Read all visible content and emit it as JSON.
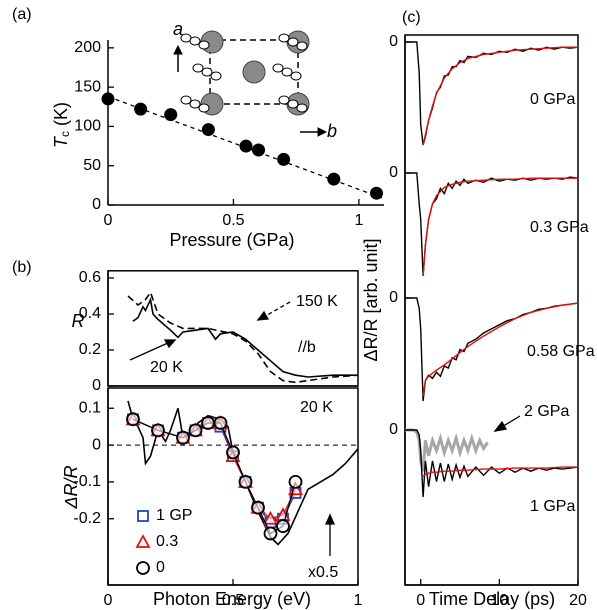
{
  "chart_data": [
    {
      "type": "scatter",
      "panel_label": "(a)",
      "xlabel": "Pressure (GPa)",
      "ylabel": {
        "symbol": "T",
        "sub": "c",
        "unit": " (K)"
      },
      "x": [
        0,
        0.13,
        0.25,
        0.4,
        0.55,
        0.6,
        0.7,
        0.9,
        1.07
      ],
      "values": [
        135,
        122,
        115,
        96,
        75,
        70,
        58,
        33,
        15
      ],
      "color": "#000000",
      "fit": {
        "x": [
          0,
          1.1
        ],
        "values": [
          138,
          8
        ],
        "color": "#000000"
      },
      "inset_labels": [
        "a",
        "b"
      ],
      "xlim": [
        0,
        1.1
      ],
      "ylim": [
        0,
        210
      ],
      "xticks": [
        0,
        0.5,
        1
      ],
      "yticks": [
        0,
        50,
        100,
        150,
        200
      ]
    },
    {
      "type": "line",
      "panel_label": "(b)",
      "ylabel": "R",
      "annotations": [
        "//b"
      ],
      "series": [
        {
          "name": "150 K",
          "color": "#000000",
          "dashed": true,
          "x": [
            0.08,
            0.12,
            0.15,
            0.17,
            0.2,
            0.25,
            0.3,
            0.4,
            0.5,
            0.55,
            0.6,
            0.65,
            0.7,
            0.75,
            0.8,
            0.9,
            1
          ],
          "values": [
            0.5,
            0.45,
            0.48,
            0.52,
            0.4,
            0.35,
            0.32,
            0.32,
            0.29,
            0.25,
            0.18,
            0.08,
            0.03,
            0.02,
            0.03,
            0.05,
            0.06
          ]
        },
        {
          "name": "20 K",
          "color": "#000000",
          "dashed": false,
          "x": [
            0.1,
            0.12,
            0.14,
            0.15,
            0.17,
            0.18,
            0.2,
            0.25,
            0.28,
            0.3,
            0.35,
            0.4,
            0.43,
            0.45,
            0.5,
            0.55,
            0.6,
            0.65,
            0.7,
            0.75,
            0.8,
            0.9,
            1
          ],
          "values": [
            0.36,
            0.38,
            0.44,
            0.42,
            0.48,
            0.4,
            0.37,
            0.31,
            0.27,
            0.3,
            0.31,
            0.32,
            0.26,
            0.29,
            0.3,
            0.26,
            0.2,
            0.14,
            0.08,
            0.06,
            0.05,
            0.06,
            0.06
          ]
        }
      ],
      "xlim": [
        0,
        1
      ],
      "ylim": [
        0,
        0.64
      ],
      "yticks": [
        0,
        0.2,
        0.4,
        0.6
      ]
    },
    {
      "type": "line",
      "xlabel": "Photon Energy (eV)",
      "ylabel": "ΔR/R",
      "annotations": [
        "20 K",
        "x0.5"
      ],
      "zero_line": true,
      "series": [
        {
          "color": "#000000",
          "x": [
            0.08,
            0.1,
            0.12,
            0.14,
            0.15,
            0.17,
            0.2,
            0.23,
            0.25,
            0.28,
            0.3,
            0.33,
            0.36,
            0.4,
            0.45,
            0.48,
            0.5,
            0.55,
            0.6,
            0.65,
            0.68,
            0.72,
            0.76,
            0.8,
            0.85,
            0.9,
            0.95,
            1
          ],
          "values": [
            0.12,
            0.07,
            0.05,
            0.02,
            -0.05,
            -0.03,
            0.04,
            0.01,
            0.04,
            0.1,
            0.02,
            0.03,
            0.06,
            0.08,
            0.07,
            0.05,
            -0.02,
            -0.1,
            -0.18,
            -0.25,
            -0.27,
            -0.24,
            -0.18,
            -0.12,
            -0.1,
            -0.08,
            -0.05,
            -0.01
          ]
        },
        {
          "name": "1 GP",
          "color": "#1f3fd8",
          "marker": "square",
          "x": [
            0.1,
            0.2,
            0.3,
            0.35,
            0.4,
            0.45,
            0.5,
            0.55,
            0.6,
            0.65,
            0.7,
            0.75
          ],
          "values": [
            0.07,
            0.04,
            0.02,
            0.04,
            0.06,
            0.05,
            -0.03,
            -0.1,
            -0.17,
            -0.21,
            -0.2,
            -0.13
          ]
        },
        {
          "name": "0.3",
          "color": "#e01010",
          "marker": "triangle",
          "x": [
            0.1,
            0.2,
            0.3,
            0.35,
            0.4,
            0.45,
            0.5,
            0.55,
            0.6,
            0.65,
            0.7,
            0.75
          ],
          "values": [
            0.07,
            0.04,
            0.02,
            0.04,
            0.06,
            0.06,
            -0.03,
            -0.1,
            -0.17,
            -0.2,
            -0.19,
            -0.12
          ]
        },
        {
          "name": "0",
          "color": "#000000",
          "marker": "circle",
          "x": [
            0.1,
            0.2,
            0.3,
            0.35,
            0.4,
            0.45,
            0.5,
            0.55,
            0.6,
            0.65,
            0.7,
            0.75
          ],
          "values": [
            0.07,
            0.04,
            0.02,
            0.04,
            0.06,
            0.06,
            -0.02,
            -0.1,
            -0.17,
            -0.24,
            -0.22,
            -0.1
          ]
        }
      ],
      "xlim": [
        0,
        1
      ],
      "ylim": [
        -0.38,
        0.155
      ],
      "xticks": [
        0,
        0.5,
        1
      ],
      "yticks": [
        0.1,
        0,
        -0.1,
        -0.2
      ]
    },
    {
      "type": "line",
      "panel_label": "(c)",
      "xlabel": "Time Delay (ps)",
      "ylabel": "ΔR/R [arb. unit]",
      "xlim": [
        -2,
        20
      ],
      "xticks": [
        0,
        10,
        20
      ],
      "traces": [
        {
          "label": "0 GPa",
          "ylim": [
            -1.2,
            0.1
          ],
          "yticks": [
            0
          ],
          "series": [
            {
              "color": "#000000",
              "x": [
                -2,
                -1.5,
                -1,
                -0.5,
                -0.2,
                0,
                0.3,
                0.6,
                1,
                1.5,
                2,
                2.5,
                3,
                3.5,
                4,
                4.5,
                5,
                5.5,
                6,
                7,
                8,
                9,
                10,
                11,
                12,
                13,
                14,
                15,
                16,
                17,
                18,
                19,
                20
              ],
              "values": [
                0,
                0,
                0,
                0,
                -0.3,
                -0.8,
                -1,
                -0.92,
                -0.76,
                -0.64,
                -0.49,
                -0.44,
                -0.33,
                -0.32,
                -0.24,
                -0.24,
                -0.18,
                -0.2,
                -0.14,
                -0.15,
                -0.11,
                -0.12,
                -0.09,
                -0.1,
                -0.07,
                -0.09,
                -0.06,
                -0.08,
                -0.05,
                -0.07,
                -0.05,
                -0.06,
                -0.05
              ]
            },
            {
              "color": "#e01010",
              "x": [
                0.3,
                0.6,
                1,
                1.5,
                2,
                3,
                4,
                5,
                6,
                8,
                10,
                12,
                14,
                16,
                18,
                20
              ],
              "values": [
                -1,
                -0.9,
                -0.76,
                -0.62,
                -0.5,
                -0.35,
                -0.26,
                -0.2,
                -0.16,
                -0.12,
                -0.1,
                -0.08,
                -0.07,
                -0.06,
                -0.05,
                -0.05
              ]
            }
          ]
        },
        {
          "label": "0.3 GPa",
          "ylim": [
            -1.2,
            0.1
          ],
          "yticks": [
            0
          ],
          "series": [
            {
              "color": "#000000",
              "x": [
                -2,
                -1.5,
                -1,
                -0.5,
                -0.2,
                0,
                0.3,
                0.6,
                1,
                1.5,
                2,
                2.5,
                3,
                3.5,
                4,
                4.5,
                5,
                5.5,
                6,
                7,
                8,
                9,
                10,
                11,
                12,
                13,
                14,
                15,
                16,
                17,
                18,
                19,
                20
              ],
              "values": [
                0,
                0,
                0,
                0,
                -0.3,
                -0.45,
                -1,
                -0.7,
                -0.45,
                -0.3,
                -0.25,
                -0.15,
                -0.2,
                -0.1,
                -0.15,
                -0.08,
                -0.12,
                -0.06,
                -0.1,
                -0.07,
                -0.09,
                -0.05,
                -0.08,
                -0.06,
                -0.07,
                -0.05,
                -0.07,
                -0.05,
                -0.06,
                -0.05,
                -0.06,
                -0.04,
                -0.05
              ]
            },
            {
              "color": "#e01010",
              "x": [
                0.3,
                0.6,
                1,
                1.5,
                2,
                3,
                4,
                5,
                6,
                8,
                10,
                12,
                14,
                16,
                18,
                20
              ],
              "values": [
                -1,
                -0.7,
                -0.45,
                -0.3,
                -0.22,
                -0.14,
                -0.11,
                -0.09,
                -0.08,
                -0.07,
                -0.06,
                -0.06,
                -0.05,
                -0.05,
                -0.05,
                -0.05
              ]
            }
          ]
        },
        {
          "label": "0.58 GPa",
          "ylim": [
            -1.2,
            0.1
          ],
          "yticks": [
            0
          ],
          "series": [
            {
              "color": "#000000",
              "x": [
                -2,
                -1.5,
                -1,
                -0.5,
                -0.2,
                0,
                0.3,
                0.6,
                1,
                1.5,
                2,
                2.5,
                3,
                3.5,
                4,
                4.5,
                5,
                5.5,
                6,
                7,
                8,
                9,
                10,
                11,
                12,
                13,
                14,
                15,
                16,
                17,
                18,
                19,
                20
              ],
              "values": [
                0,
                0,
                0,
                0,
                -0.1,
                -0.3,
                -1,
                -0.8,
                -0.75,
                -0.78,
                -0.72,
                -0.76,
                -0.66,
                -0.68,
                -0.58,
                -0.6,
                -0.5,
                -0.52,
                -0.44,
                -0.4,
                -0.34,
                -0.3,
                -0.26,
                -0.22,
                -0.2,
                -0.16,
                -0.14,
                -0.11,
                -0.1,
                -0.08,
                -0.07,
                -0.06,
                -0.05
              ]
            },
            {
              "color": "#e01010",
              "x": [
                0.3,
                0.6,
                1,
                1.5,
                2,
                3,
                4,
                5,
                6,
                8,
                10,
                12,
                14,
                16,
                18,
                20
              ],
              "values": [
                -0.95,
                -0.8,
                -0.76,
                -0.73,
                -0.7,
                -0.65,
                -0.59,
                -0.53,
                -0.47,
                -0.37,
                -0.28,
                -0.2,
                -0.14,
                -0.1,
                -0.07,
                -0.05
              ]
            }
          ]
        },
        {
          "label": "1 GPa",
          "ylim": [
            -1.2,
            0.1
          ],
          "yticks": [
            0
          ],
          "series": [
            {
              "name": "2 GPa",
              "color": "#a6a6a6",
              "x": [
                -2,
                -1.5,
                -1,
                -0.5,
                -0.2,
                0,
                0.3,
                0.6,
                1,
                1.5,
                2,
                2.5,
                3,
                3.5,
                4,
                4.5,
                5,
                5.5,
                6,
                6.5,
                7,
                7.5,
                8,
                8.5
              ],
              "values": [
                0,
                0,
                0,
                -0.02,
                -0.1,
                -0.3,
                -0.4,
                -0.1,
                -0.25,
                -0.1,
                -0.2,
                -0.08,
                -0.22,
                -0.1,
                -0.2,
                -0.08,
                -0.22,
                -0.1,
                -0.2,
                -0.08,
                -0.2,
                -0.1,
                -0.18,
                -0.12
              ]
            },
            {
              "color": "#000000",
              "x": [
                -2,
                -1.5,
                -1,
                -0.5,
                -0.2,
                0,
                0.3,
                0.6,
                1,
                1.5,
                2,
                2.5,
                3,
                3.5,
                4,
                4.5,
                5,
                5.5,
                6,
                7,
                8,
                9,
                10,
                11,
                12,
                13,
                14,
                15,
                16,
                17,
                18,
                19,
                20
              ],
              "values": [
                0,
                0,
                0,
                0,
                -0.05,
                -0.2,
                -0.65,
                -0.3,
                -0.55,
                -0.3,
                -0.5,
                -0.32,
                -0.5,
                -0.33,
                -0.48,
                -0.34,
                -0.46,
                -0.35,
                -0.45,
                -0.36,
                -0.44,
                -0.36,
                -0.42,
                -0.37,
                -0.41,
                -0.37,
                -0.4,
                -0.37,
                -0.39,
                -0.37,
                -0.38,
                -0.37,
                -0.36
              ]
            },
            {
              "color": "#e01010",
              "x": [
                0.3,
                0.6,
                1,
                1.5,
                2,
                3,
                4,
                5,
                6,
                8,
                10,
                12,
                14,
                16,
                18,
                20
              ],
              "values": [
                -0.45,
                -0.43,
                -0.42,
                -0.41,
                -0.41,
                -0.4,
                -0.4,
                -0.39,
                -0.39,
                -0.38,
                -0.38,
                -0.37,
                -0.37,
                -0.37,
                -0.36,
                -0.36
              ]
            }
          ]
        }
      ]
    }
  ]
}
